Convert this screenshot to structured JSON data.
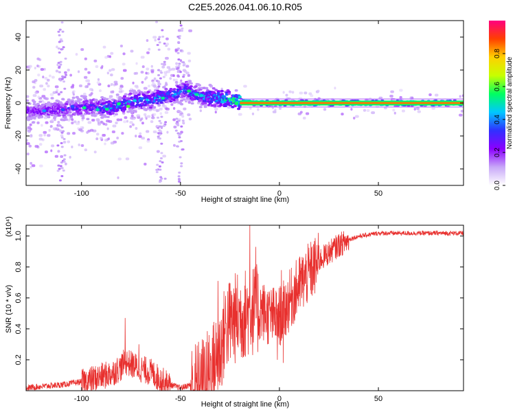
{
  "title": "C2E5.2026.041.06.10.R05",
  "chart_data": [
    {
      "type": "heatmap",
      "name": "spectrogram",
      "xlabel": "Height of straight line (km)",
      "ylabel": "Frequency (Hz)",
      "xlim": [
        -128,
        93
      ],
      "ylim": [
        -50,
        50
      ],
      "xticks": [
        -100,
        -50,
        0,
        50
      ],
      "yticks": [
        -40,
        -20,
        0,
        20,
        40
      ],
      "colorbar": {
        "label": "Normalized spectral amplitude",
        "range": [
          0,
          1
        ],
        "ticks": [
          0.0,
          0.2,
          0.4,
          0.6,
          0.8
        ],
        "tick_labels": [
          "0.0",
          "0.2",
          "0.4",
          "0.6",
          "0.8"
        ],
        "colors": [
          "#ffffff",
          "#c8a8f8",
          "#8b00ff",
          "#3030ff",
          "#00c8ff",
          "#00ff60",
          "#c8ff00",
          "#ffd000",
          "#ff4000",
          "#ff0080"
        ]
      },
      "ridge": [
        {
          "x": -125,
          "f": -5,
          "amp": 0.25
        },
        {
          "x": -110,
          "f": -4,
          "amp": 0.3
        },
        {
          "x": -95,
          "f": -2,
          "amp": 0.35
        },
        {
          "x": -85,
          "f": -3,
          "amp": 0.45
        },
        {
          "x": -75,
          "f": 1,
          "amp": 0.45
        },
        {
          "x": -65,
          "f": 2,
          "amp": 0.45
        },
        {
          "x": -55,
          "f": 5,
          "amp": 0.45
        },
        {
          "x": -47,
          "f": 8,
          "amp": 0.4
        },
        {
          "x": -40,
          "f": 4,
          "amp": 0.45
        },
        {
          "x": -30,
          "f": 3,
          "amp": 0.5
        },
        {
          "x": -20,
          "f": 1,
          "amp": 0.75
        },
        {
          "x": -10,
          "f": 0,
          "amp": 0.85
        },
        {
          "x": 0,
          "f": 0,
          "amp": 0.9
        },
        {
          "x": 20,
          "f": 0,
          "amp": 0.9
        },
        {
          "x": 50,
          "f": 0,
          "amp": 0.9
        },
        {
          "x": 92,
          "f": 0,
          "amp": 0.9
        }
      ]
    },
    {
      "type": "line",
      "name": "snr",
      "xlabel": "Height of straight line (km)",
      "ylabel": "SNR (10 * v/v)",
      "y_multiplier": "(x10⁴)",
      "color": "#e8302e",
      "xlim": [
        -128,
        93
      ],
      "ylim": [
        0,
        1.07
      ],
      "xticks": [
        -100,
        -50,
        0,
        50
      ],
      "yticks": [
        0.2,
        0.4,
        0.6,
        0.8,
        1.0
      ],
      "ytick_labels": [
        "0.2",
        "0.4",
        "0.6",
        "0.8",
        "1.0"
      ],
      "x": [
        -128,
        -120,
        -110,
        -100,
        -95,
        -90,
        -85,
        -80,
        -78,
        -75,
        -70,
        -65,
        -60,
        -55,
        -50,
        -45,
        -40,
        -35,
        -30,
        -27,
        -22,
        -18,
        -15,
        -10,
        -5,
        0,
        3,
        5,
        10,
        15,
        20,
        25,
        30,
        35,
        40,
        50,
        60,
        70,
        80,
        93
      ],
      "y": [
        0.02,
        0.03,
        0.04,
        0.06,
        0.08,
        0.1,
        0.12,
        0.16,
        0.2,
        0.18,
        0.15,
        0.13,
        0.08,
        0.04,
        0.02,
        0.04,
        0.07,
        0.15,
        0.28,
        0.45,
        0.5,
        0.52,
        0.55,
        0.55,
        0.5,
        0.5,
        0.55,
        0.6,
        0.7,
        0.78,
        0.85,
        0.9,
        0.95,
        0.98,
        1.0,
        1.02,
        1.02,
        1.02,
        1.02,
        1.02
      ],
      "spikes": [
        {
          "x": -78,
          "y": 0.47
        },
        {
          "x": -71,
          "y": 0.3
        },
        {
          "x": -31,
          "y": 0.71
        },
        {
          "x": -24,
          "y": 0.62
        },
        {
          "x": -15,
          "y": 1.07
        },
        {
          "x": -12,
          "y": 0.93
        },
        {
          "x": 1,
          "y": 0.78
        },
        {
          "x": -1,
          "y": 0.2
        },
        {
          "x": 2,
          "y": 0.18
        }
      ]
    }
  ]
}
